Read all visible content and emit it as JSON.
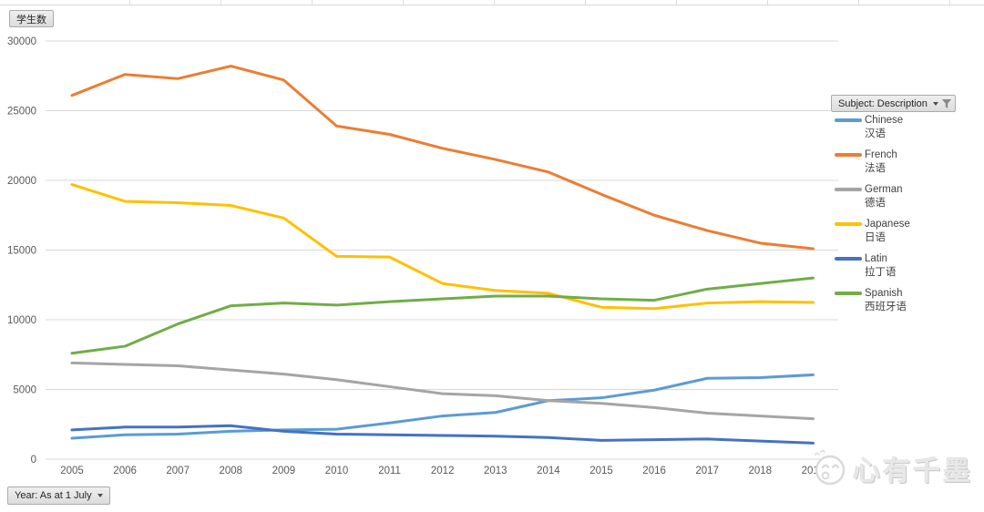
{
  "window": {
    "background": "#ffffff"
  },
  "buttons": {
    "value_field_label": "学生数",
    "legend_filter_label": "Subject: Description",
    "year_filter_label": "Year: As at 1 July"
  },
  "watermark": {
    "text": "心有千墨",
    "icon": "smiley-face"
  },
  "chart_data": {
    "type": "line",
    "title": "",
    "xlabel": "",
    "ylabel": "学生数",
    "categories": [
      "2005",
      "2006",
      "2007",
      "2008",
      "2009",
      "2010",
      "2011",
      "2012",
      "2013",
      "2014",
      "2015",
      "2016",
      "2017",
      "2018",
      "2019"
    ],
    "series": [
      {
        "name": "Chinese",
        "name_zh": "汉语",
        "color": "#5B9BD5",
        "values": [
          1500,
          1750,
          1800,
          2000,
          2100,
          2150,
          2600,
          3100,
          3350,
          4200,
          4400,
          4950,
          5800,
          5850,
          6050
        ]
      },
      {
        "name": "French",
        "name_zh": "法语",
        "color": "#ED7D31",
        "values": [
          26100,
          27600,
          27300,
          28200,
          27200,
          23900,
          23300,
          22300,
          21500,
          20600,
          19000,
          17500,
          16400,
          15500,
          15100
        ]
      },
      {
        "name": "German",
        "name_zh": "德语",
        "color": "#A5A5A5",
        "values": [
          6900,
          6800,
          6700,
          6400,
          6100,
          5700,
          5200,
          4700,
          4550,
          4200,
          4000,
          3700,
          3300,
          3100,
          2900
        ]
      },
      {
        "name": "Japanese",
        "name_zh": "日语",
        "color": "#FFC000",
        "values": [
          19700,
          18500,
          18400,
          18200,
          17300,
          14550,
          14500,
          12600,
          12100,
          11900,
          10900,
          10800,
          11200,
          11300,
          11250
        ]
      },
      {
        "name": "Latin",
        "name_zh": "拉丁语",
        "color": "#4472C4",
        "values": [
          2100,
          2300,
          2300,
          2400,
          2000,
          1800,
          1750,
          1700,
          1650,
          1550,
          1350,
          1400,
          1450,
          1300,
          1150
        ]
      },
      {
        "name": "Spanish",
        "name_zh": "西班牙语",
        "color": "#70AD47",
        "values": [
          7600,
          8100,
          9700,
          11000,
          11200,
          11050,
          11300,
          11500,
          11700,
          11700,
          11500,
          11400,
          12200,
          12600,
          13000
        ]
      }
    ],
    "ylim": [
      0,
      30000
    ],
    "ytick_step": 5000,
    "ytick_labels": [
      "0",
      "5000",
      "10000",
      "15000",
      "20000",
      "25000",
      "30000"
    ],
    "grid": "horizontal",
    "gridline_color": "#D9D9D9",
    "axis_label_color": "#595959",
    "legend_position": "right"
  }
}
